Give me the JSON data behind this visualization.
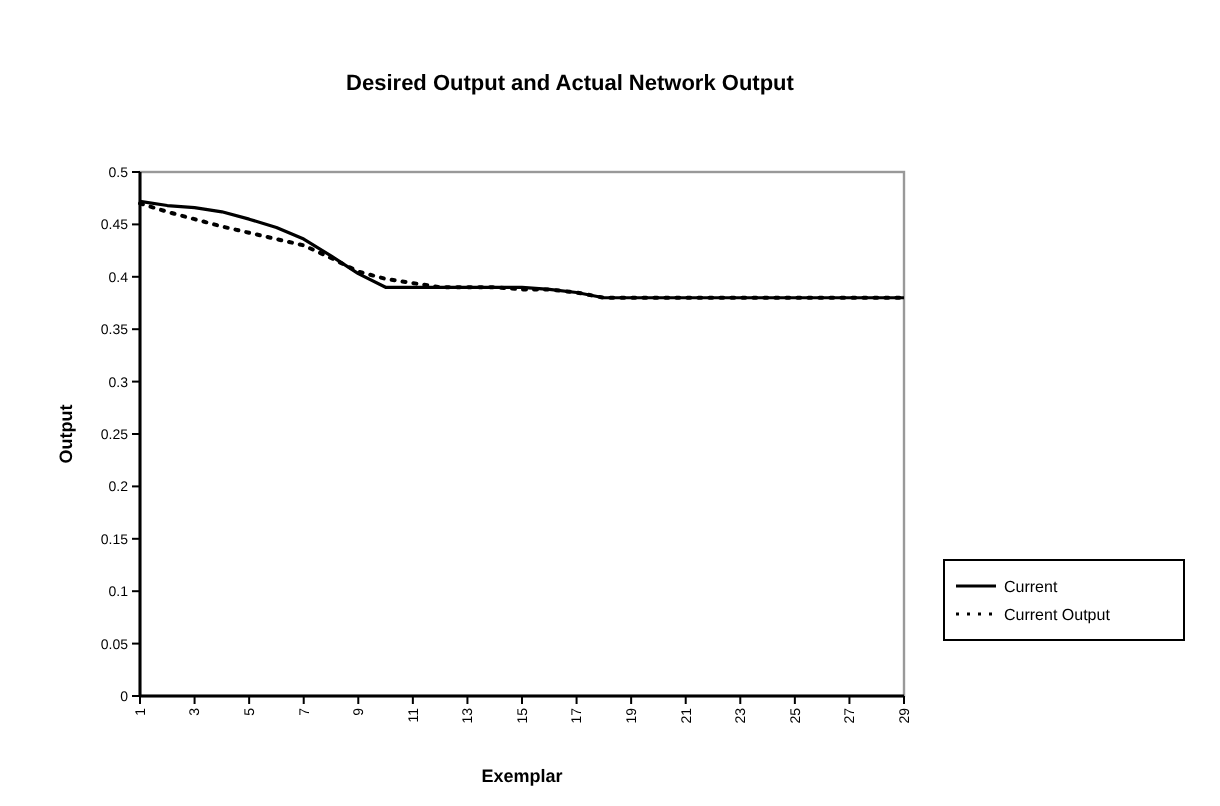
{
  "chart_data": {
    "type": "line",
    "title": "Desired Output and Actual Network Output",
    "xlabel": "Exemplar",
    "ylabel": "Output",
    "x": [
      1,
      2,
      3,
      4,
      5,
      6,
      7,
      8,
      9,
      10,
      11,
      12,
      13,
      14,
      15,
      16,
      17,
      18,
      19,
      20,
      21,
      22,
      23,
      24,
      25,
      26,
      27,
      28,
      29
    ],
    "xlim": [
      1,
      29
    ],
    "xticks": [
      1,
      3,
      5,
      7,
      9,
      11,
      13,
      15,
      17,
      19,
      21,
      23,
      25,
      27,
      29
    ],
    "ylim": [
      0,
      0.5
    ],
    "yticks": [
      0,
      0.05,
      0.1,
      0.15,
      0.2,
      0.25,
      0.3,
      0.35,
      0.4,
      0.45,
      0.5
    ],
    "series": [
      {
        "name": "Current",
        "color": "#000000",
        "line_style": "solid",
        "values": [
          0.472,
          0.468,
          0.466,
          0.462,
          0.455,
          0.447,
          0.436,
          0.42,
          0.403,
          0.39,
          0.39,
          0.39,
          0.39,
          0.39,
          0.39,
          0.388,
          0.385,
          0.38,
          0.38,
          0.38,
          0.38,
          0.38,
          0.38,
          0.38,
          0.38,
          0.38,
          0.38,
          0.38,
          0.38
        ]
      },
      {
        "name": "Current Output",
        "color": "#000000",
        "line_style": "dotted",
        "values": [
          0.47,
          0.462,
          0.455,
          0.448,
          0.442,
          0.436,
          0.43,
          0.418,
          0.405,
          0.398,
          0.394,
          0.39,
          0.39,
          0.39,
          0.388,
          0.388,
          0.385,
          0.38,
          0.38,
          0.38,
          0.38,
          0.38,
          0.38,
          0.38,
          0.38,
          0.38,
          0.38,
          0.38,
          0.38
        ]
      }
    ],
    "grid": false,
    "legend": "right",
    "marker": "none"
  }
}
